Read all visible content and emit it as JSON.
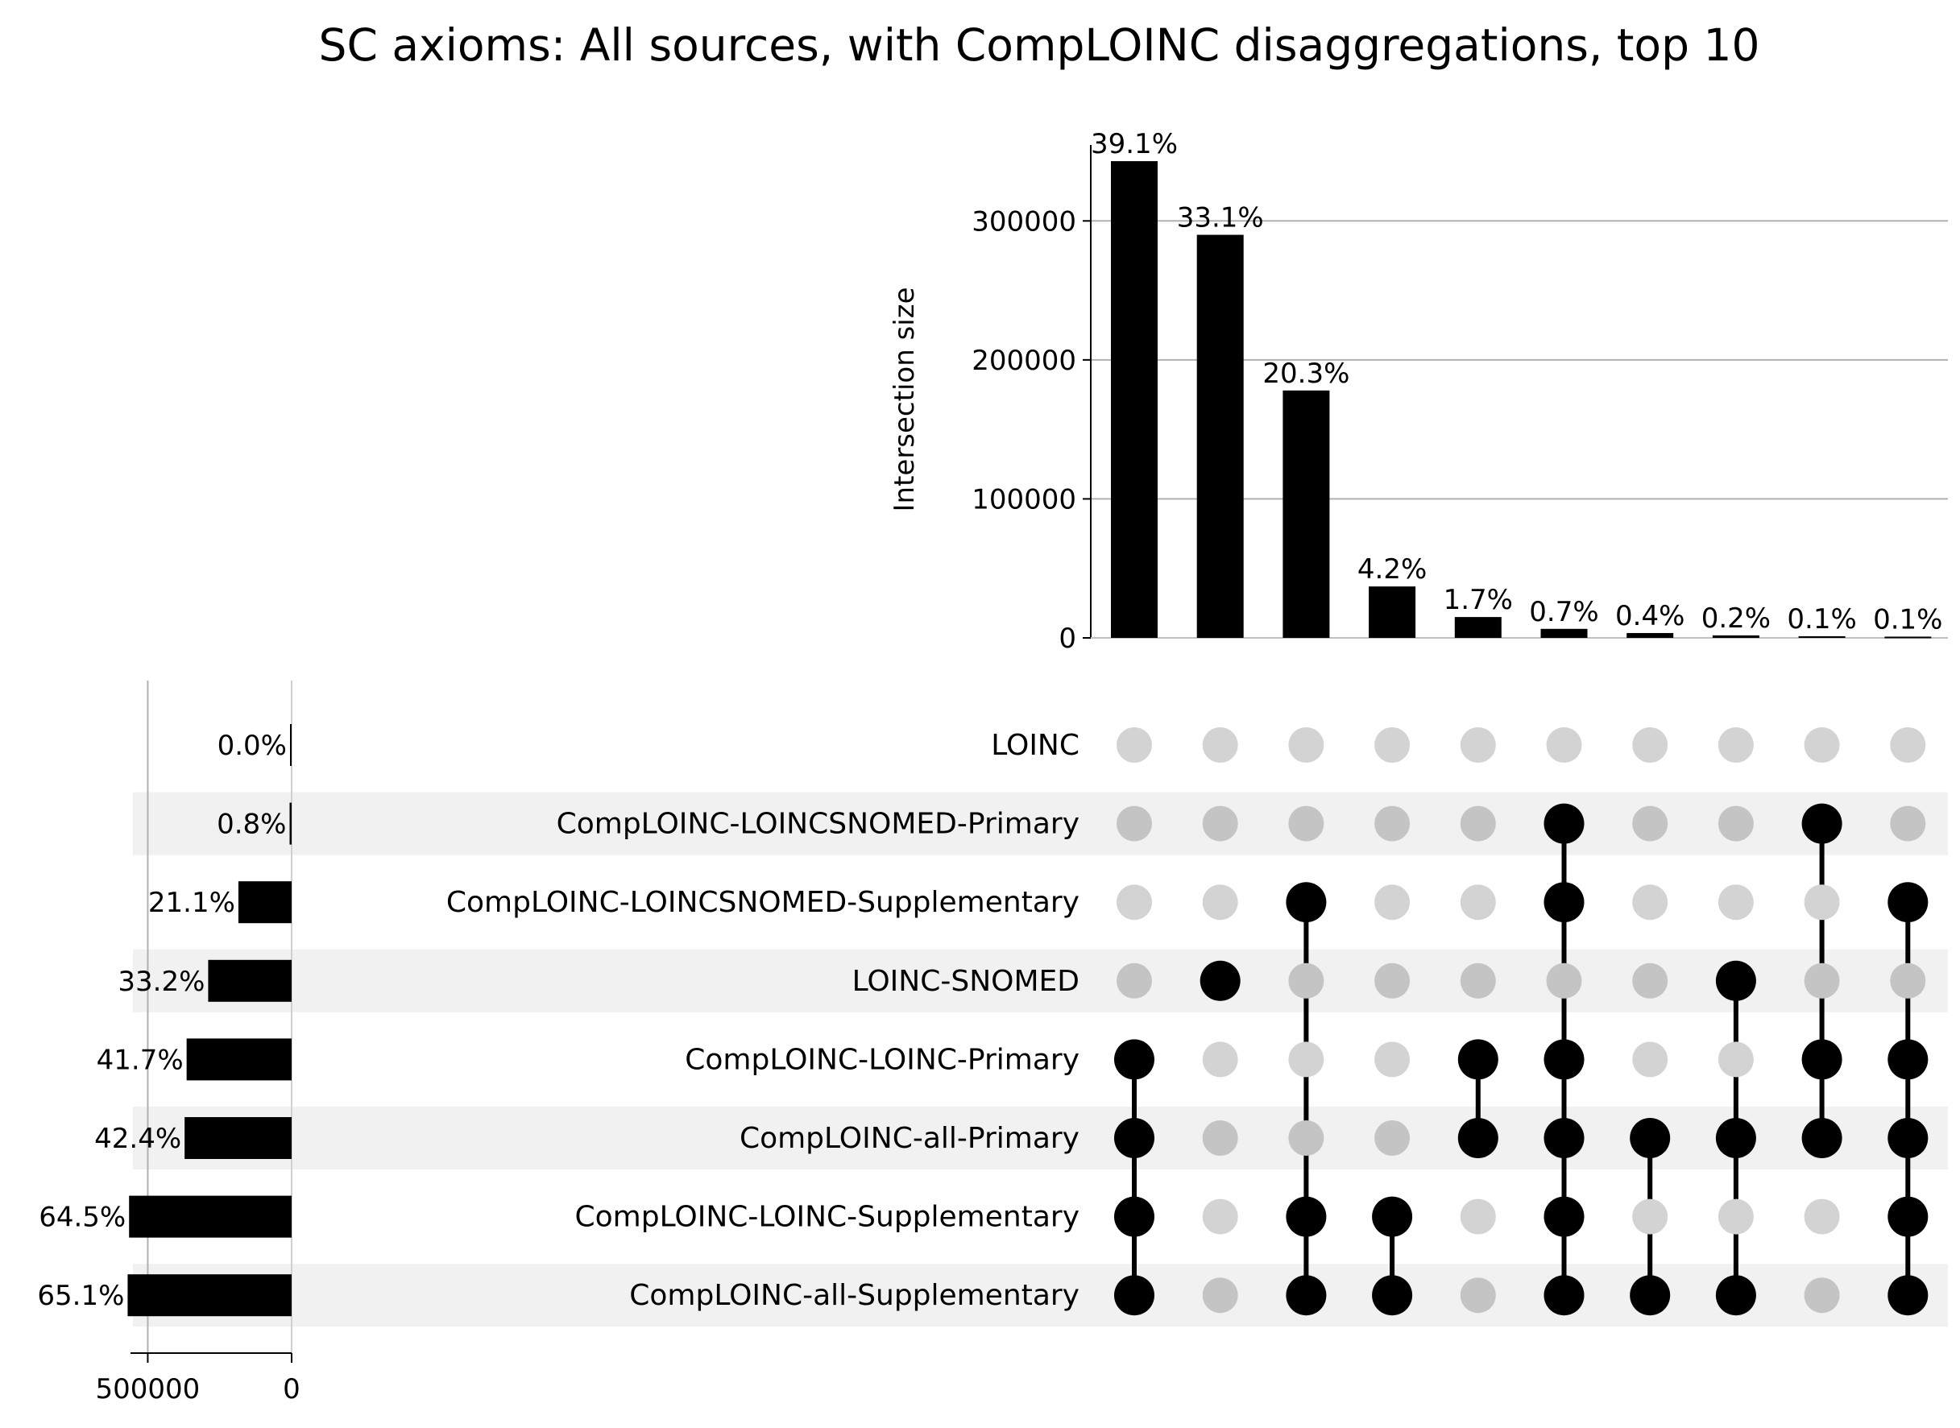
{
  "chart_data": {
    "type": "upset",
    "title": "SC axioms: All sources, with CompLOINC disaggregations, top 10",
    "intersection_axis": {
      "label": "Intersection size",
      "range": [
        0,
        350000
      ],
      "ticks": [
        0,
        100000,
        200000,
        300000
      ],
      "tick_labels": [
        "0",
        "100000",
        "200000",
        "300000"
      ],
      "grid": true
    },
    "set_size_axis": {
      "range": [
        0,
        560000
      ],
      "inverted": true,
      "ticks": [
        500000,
        0
      ],
      "tick_labels": [
        "500000",
        "0"
      ],
      "grid": true
    },
    "sets": [
      {
        "name": "LOINC",
        "size": 0,
        "label": "0.0%"
      },
      {
        "name": "CompLOINC-LOINCSNOMED-Primary",
        "size": 7000,
        "label": "0.8%"
      },
      {
        "name": "CompLOINC-LOINCSNOMED-Supplementary",
        "size": 185000,
        "label": "21.1%"
      },
      {
        "name": "LOINC-SNOMED",
        "size": 290000,
        "label": "33.2%"
      },
      {
        "name": "CompLOINC-LOINC-Primary",
        "size": 365000,
        "label": "41.7%"
      },
      {
        "name": "CompLOINC-all-Primary",
        "size": 372000,
        "label": "42.4%"
      },
      {
        "name": "CompLOINC-LOINC-Supplementary",
        "size": 565000,
        "label": "64.5%"
      },
      {
        "name": "CompLOINC-all-Supplementary",
        "size": 570000,
        "label": "65.1%"
      }
    ],
    "intersections": [
      {
        "value": 343000,
        "label": "39.1%",
        "members": [
          "CompLOINC-LOINC-Primary",
          "CompLOINC-all-Primary",
          "CompLOINC-LOINC-Supplementary",
          "CompLOINC-all-Supplementary"
        ]
      },
      {
        "value": 290000,
        "label": "33.1%",
        "members": [
          "LOINC-SNOMED"
        ]
      },
      {
        "value": 178000,
        "label": "20.3%",
        "members": [
          "CompLOINC-LOINCSNOMED-Supplementary",
          "CompLOINC-LOINC-Supplementary",
          "CompLOINC-all-Supplementary"
        ]
      },
      {
        "value": 37000,
        "label": "4.2%",
        "members": [
          "CompLOINC-LOINC-Supplementary",
          "CompLOINC-all-Supplementary"
        ]
      },
      {
        "value": 15000,
        "label": "1.7%",
        "members": [
          "CompLOINC-LOINC-Primary",
          "CompLOINC-all-Primary"
        ]
      },
      {
        "value": 6500,
        "label": "0.7%",
        "members": [
          "CompLOINC-LOINCSNOMED-Primary",
          "CompLOINC-LOINCSNOMED-Supplementary",
          "CompLOINC-LOINC-Primary",
          "CompLOINC-all-Primary",
          "CompLOINC-LOINC-Supplementary",
          "CompLOINC-all-Supplementary"
        ]
      },
      {
        "value": 3500,
        "label": "0.4%",
        "members": [
          "CompLOINC-all-Primary",
          "CompLOINC-all-Supplementary"
        ]
      },
      {
        "value": 1800,
        "label": "0.2%",
        "members": [
          "LOINC-SNOMED",
          "CompLOINC-all-Primary",
          "CompLOINC-all-Supplementary"
        ]
      },
      {
        "value": 1200,
        "label": "0.1%",
        "members": [
          "CompLOINC-LOINCSNOMED-Primary",
          "CompLOINC-LOINC-Primary",
          "CompLOINC-all-Primary"
        ]
      },
      {
        "value": 900,
        "label": "0.1%",
        "members": [
          "CompLOINC-LOINCSNOMED-Supplementary",
          "CompLOINC-LOINC-Primary",
          "CompLOINC-all-Primary",
          "CompLOINC-LOINC-Supplementary",
          "CompLOINC-all-Supplementary"
        ]
      }
    ],
    "colors": {
      "bar": "#000000",
      "dot_active": "#000000",
      "dot_inactive_light": "#d3d3d3",
      "dot_inactive_shaded": "#c4c4c4",
      "row_shade": "#f1f1f1",
      "grid": "#b0b0b0"
    }
  }
}
